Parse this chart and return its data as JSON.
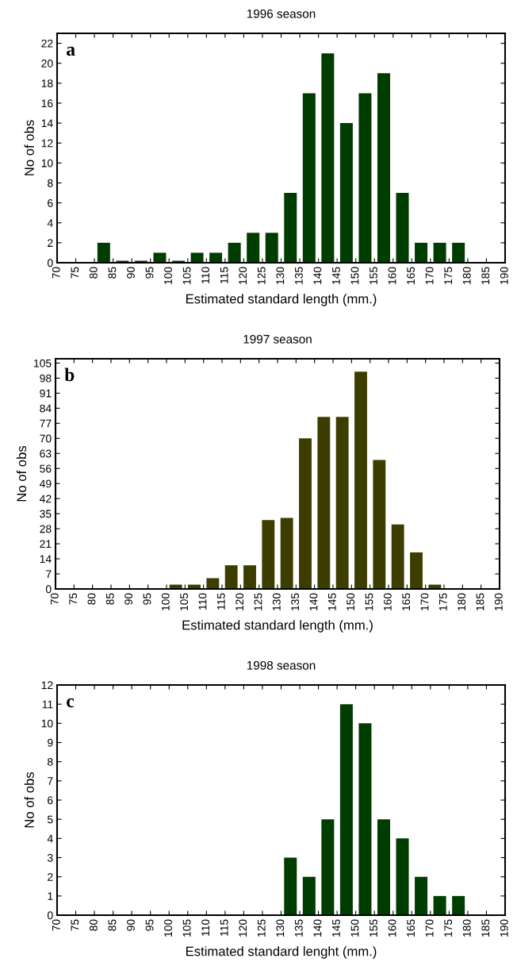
{
  "chart_data": [
    {
      "type": "histogram",
      "title": "1996 season",
      "xlabel": "Estimated standard length (mm.)",
      "ylabel": "No of obs",
      "annotations": [
        "a"
      ],
      "color": "#003d00",
      "bins": [
        70,
        75,
        80,
        85,
        90,
        95,
        100,
        105,
        110,
        115,
        120,
        125,
        130,
        135,
        140,
        145,
        150,
        155,
        160,
        165,
        170,
        175,
        180,
        185,
        190
      ],
      "values": [
        0,
        0,
        2,
        0.2,
        0.2,
        1,
        0.2,
        1,
        1,
        2,
        3,
        3,
        7,
        17,
        21,
        14,
        17,
        19,
        7,
        2,
        2,
        2,
        0,
        0
      ],
      "xlim": [
        70,
        190
      ],
      "xticks": [
        70,
        75,
        80,
        85,
        90,
        95,
        100,
        105,
        110,
        115,
        120,
        125,
        130,
        135,
        140,
        145,
        150,
        155,
        160,
        165,
        170,
        175,
        180,
        185,
        190
      ],
      "ylim": [
        0,
        23
      ],
      "yticks": [
        0,
        2,
        4,
        6,
        8,
        10,
        12,
        14,
        16,
        18,
        20,
        22
      ]
    },
    {
      "type": "histogram",
      "title": "1997 season",
      "xlabel": "Estimated standard length (mm.)",
      "ylabel": "No of obs",
      "annotations": [
        "b"
      ],
      "color": "#3d3d00",
      "bins": [
        70,
        75,
        80,
        85,
        90,
        95,
        100,
        105,
        110,
        115,
        120,
        125,
        130,
        135,
        140,
        145,
        150,
        155,
        160,
        165,
        170,
        175,
        180,
        185,
        190
      ],
      "values": [
        0,
        0,
        0,
        0,
        0,
        0,
        2,
        2,
        5,
        11,
        11,
        32,
        33,
        70,
        80,
        80,
        101,
        60,
        30,
        17,
        2,
        0,
        0,
        0
      ],
      "xlim": [
        70,
        190
      ],
      "xticks": [
        70,
        75,
        80,
        85,
        90,
        95,
        100,
        105,
        110,
        115,
        120,
        125,
        130,
        135,
        140,
        145,
        150,
        155,
        160,
        165,
        170,
        175,
        180,
        185,
        190
      ],
      "ylim": [
        0,
        107
      ],
      "yticks": [
        0,
        7,
        14,
        21,
        28,
        35,
        42,
        49,
        56,
        63,
        70,
        77,
        84,
        91,
        98,
        105
      ]
    },
    {
      "type": "histogram",
      "title": "1998 season",
      "xlabel": "Estimated standard lenght (mm.)",
      "ylabel": "No of obs",
      "annotations": [
        "c"
      ],
      "color": "#003d00",
      "bins": [
        70,
        75,
        80,
        85,
        90,
        95,
        100,
        105,
        110,
        115,
        120,
        125,
        130,
        135,
        140,
        145,
        150,
        155,
        160,
        165,
        170,
        175,
        180,
        185,
        190
      ],
      "values": [
        0,
        0,
        0,
        0,
        0,
        0,
        0,
        0,
        0,
        0,
        0,
        0,
        3,
        2,
        5,
        11,
        10,
        5,
        4,
        2,
        1,
        1,
        0,
        0
      ],
      "xlim": [
        70,
        190
      ],
      "xticks": [
        70,
        75,
        80,
        85,
        90,
        95,
        100,
        105,
        110,
        115,
        120,
        125,
        130,
        135,
        140,
        145,
        150,
        155,
        160,
        165,
        170,
        175,
        180,
        185,
        190
      ],
      "ylim": [
        0,
        12
      ],
      "yticks": [
        0,
        1,
        2,
        3,
        4,
        5,
        6,
        7,
        8,
        9,
        10,
        11,
        12
      ]
    }
  ]
}
